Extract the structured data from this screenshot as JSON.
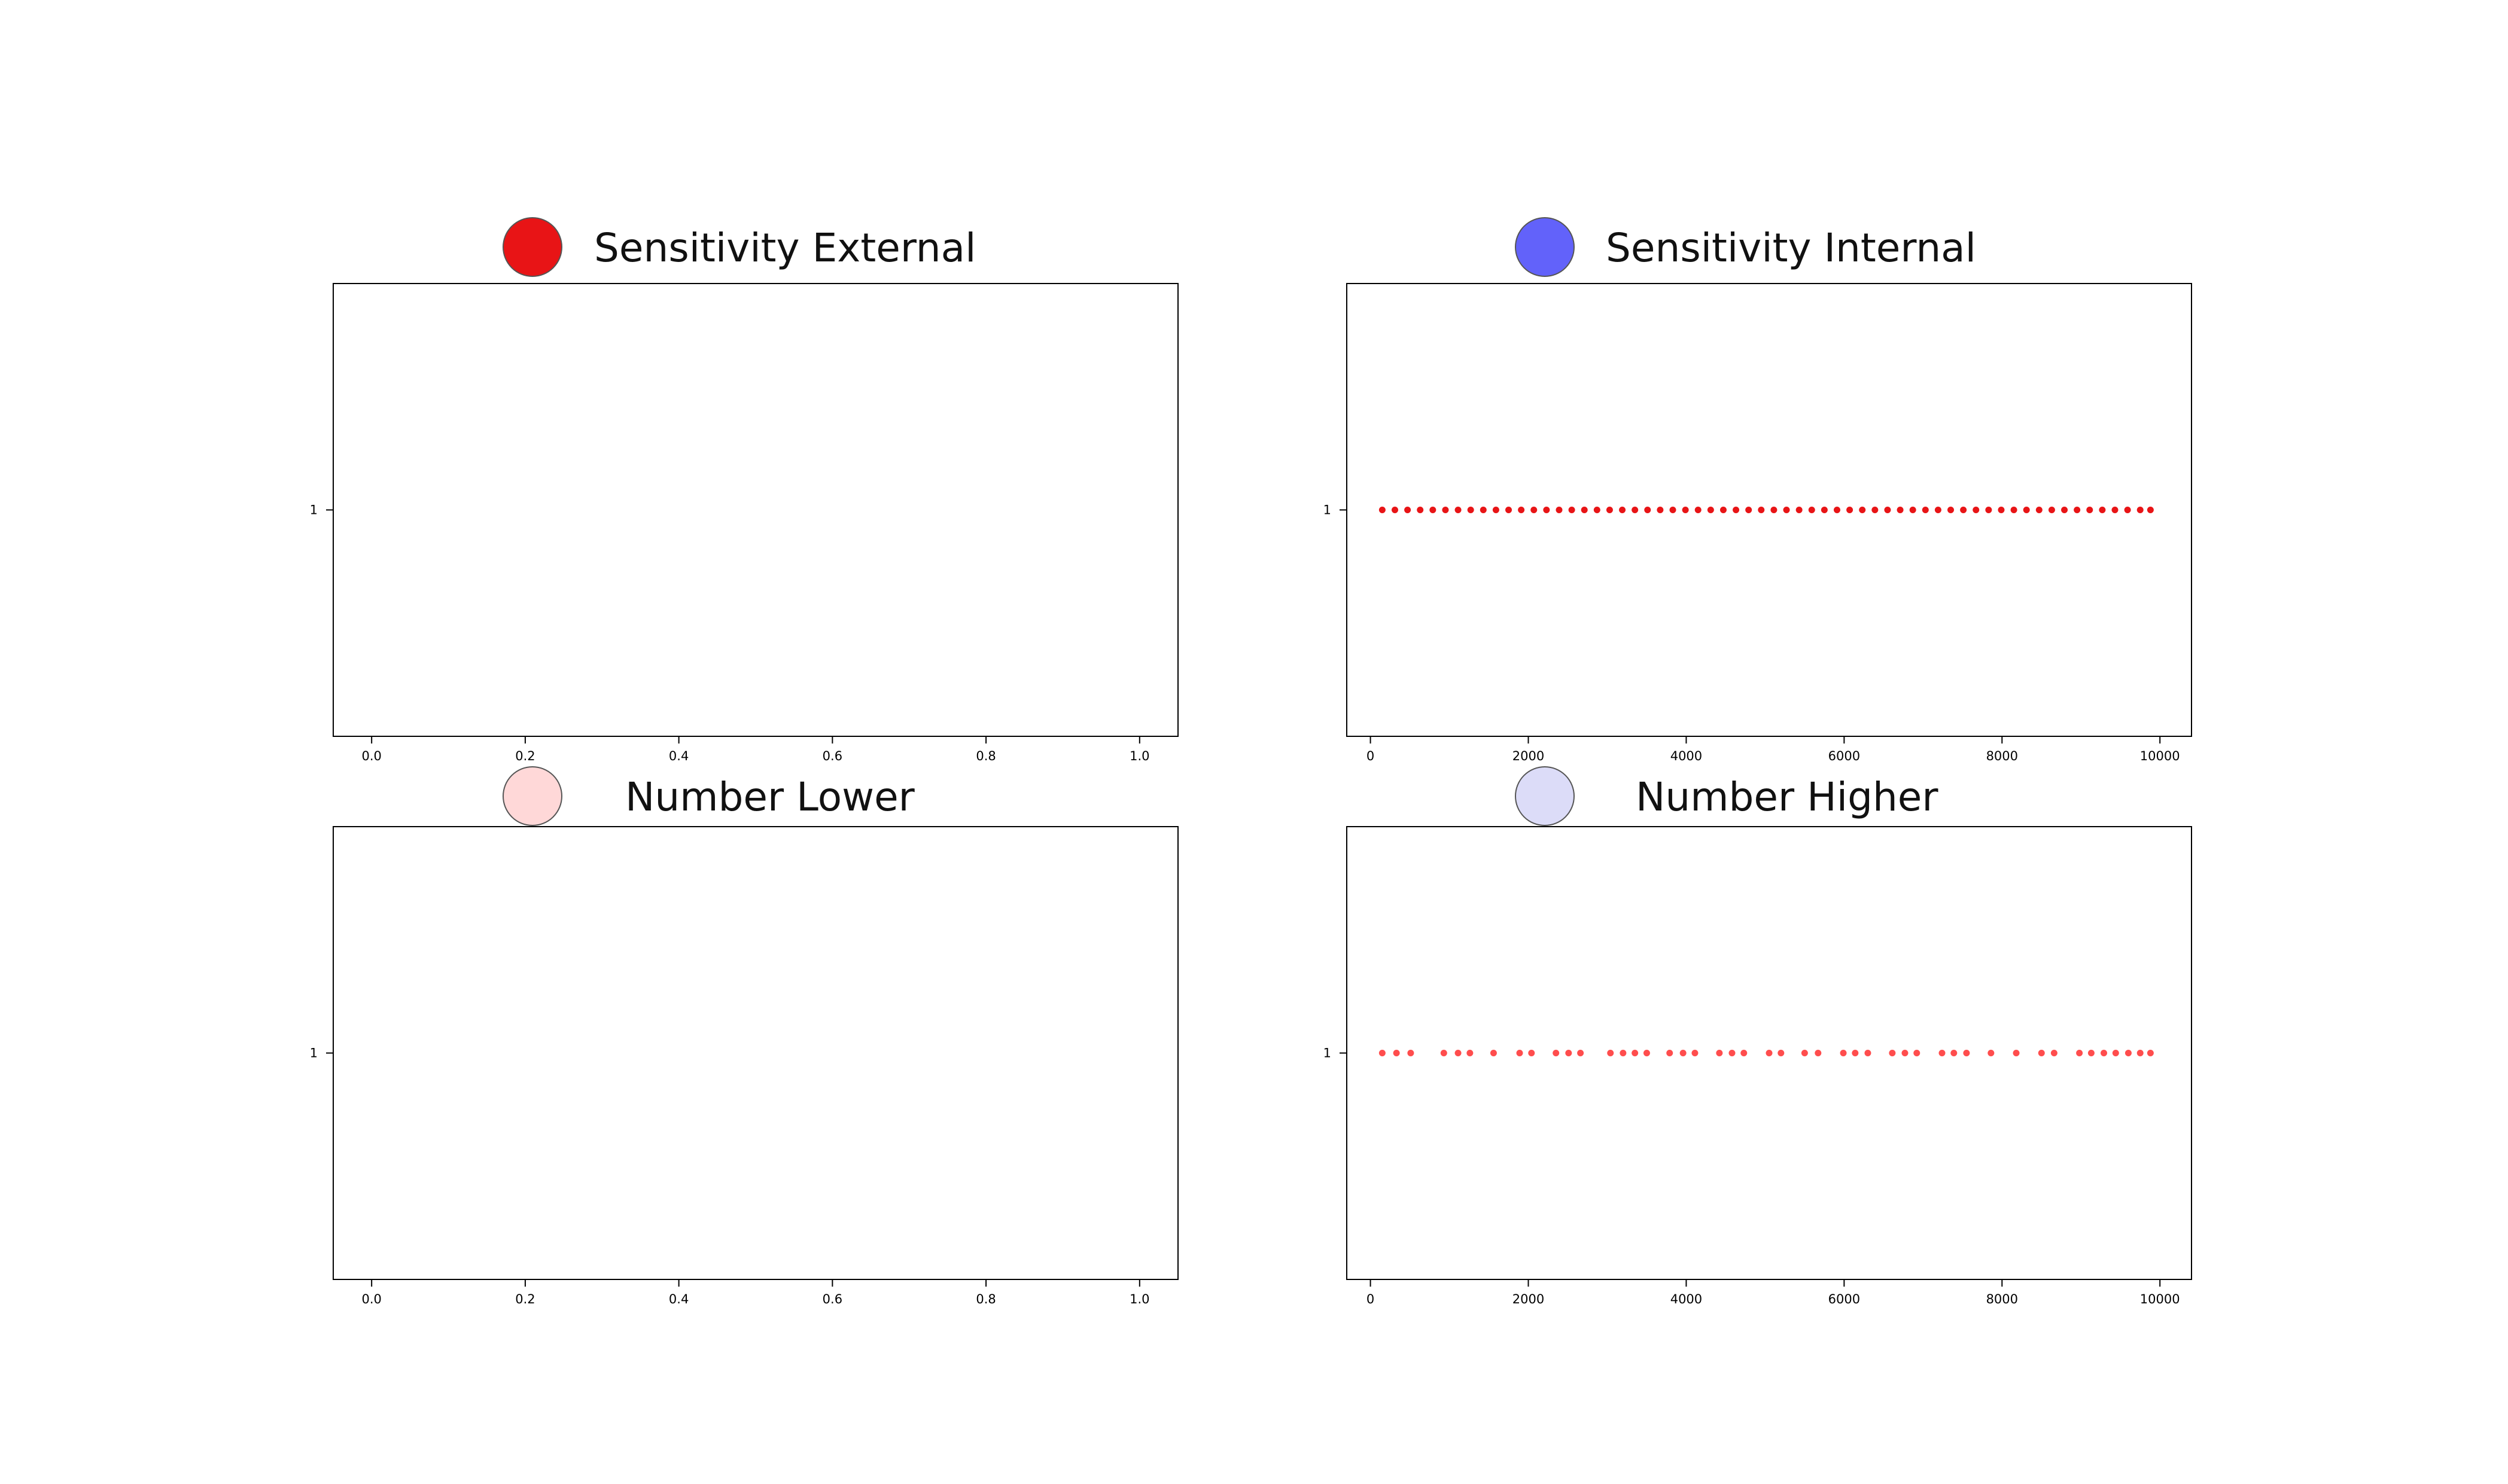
{
  "legend": [
    {
      "label": "Sensitivity External",
      "color": "#e81416"
    },
    {
      "label": "Sensitivity Internal",
      "color": "#6262fa"
    },
    {
      "label": "Number Lower",
      "color": "#ffd8d8"
    },
    {
      "label": "Number Higher",
      "color": "#dcdcf8"
    }
  ],
  "chart_data": [
    {
      "type": "scatter",
      "title": "",
      "xlim": [
        -0.05,
        1.05
      ],
      "x_ticks": [
        "0.0",
        "0.2",
        "0.4",
        "0.6",
        "0.8",
        "1.0"
      ],
      "y_ticks": [
        "1"
      ],
      "ylim": [
        0,
        2
      ],
      "grid": false,
      "series": [
        {
          "x": [],
          "y": [],
          "color": "#e81416"
        }
      ]
    },
    {
      "type": "scatter",
      "title": "",
      "xlim": [
        -300,
        10400
      ],
      "x_ticks": [
        "0",
        "2000",
        "4000",
        "6000",
        "8000",
        "10000"
      ],
      "y_ticks": [
        "1"
      ],
      "ylim": [
        0,
        2
      ],
      "grid": false,
      "series": [
        {
          "color": "#e81416",
          "y_value": 1,
          "x": [
            150,
            310,
            470,
            630,
            790,
            950,
            1110,
            1270,
            1430,
            1590,
            1750,
            1910,
            2070,
            2230,
            2390,
            2550,
            2710,
            2870,
            3030,
            3190,
            3350,
            3510,
            3670,
            3830,
            3990,
            4150,
            4310,
            4470,
            4630,
            4790,
            4950,
            5110,
            5270,
            5430,
            5590,
            5750,
            5910,
            6070,
            6230,
            6390,
            6550,
            6710,
            6870,
            7030,
            7190,
            7350,
            7510,
            7670,
            7830,
            7990,
            8150,
            8310,
            8470,
            8630,
            8790,
            8950,
            9110,
            9270,
            9430,
            9590,
            9750,
            9880
          ]
        }
      ]
    },
    {
      "type": "scatter",
      "title": "",
      "xlim": [
        -0.05,
        1.05
      ],
      "x_ticks": [
        "0.0",
        "0.2",
        "0.4",
        "0.6",
        "0.8",
        "1.0"
      ],
      "y_ticks": [
        "1"
      ],
      "ylim": [
        0,
        2
      ],
      "grid": false,
      "series": [
        {
          "x": [],
          "y": [],
          "color": "#ff4d4d"
        }
      ]
    },
    {
      "type": "scatter",
      "title": "",
      "xlim": [
        -300,
        10400
      ],
      "x_ticks": [
        "0",
        "2000",
        "4000",
        "6000",
        "8000",
        "10000"
      ],
      "y_ticks": [
        "1"
      ],
      "ylim": [
        0,
        2
      ],
      "grid": false,
      "series": [
        {
          "color": "#ff4d4d",
          "y_value": 1,
          "x": [
            150,
            330,
            510,
            930,
            1110,
            1260,
            1560,
            1890,
            2040,
            2350,
            2510,
            2660,
            3040,
            3200,
            3350,
            3500,
            3790,
            3960,
            4110,
            4420,
            4580,
            4730,
            5050,
            5200,
            5500,
            5670,
            5990,
            6140,
            6300,
            6610,
            6770,
            6920,
            7240,
            7390,
            7550,
            7860,
            8180,
            8500,
            8660,
            8980,
            9130,
            9290,
            9440,
            9600,
            9750,
            9880
          ]
        }
      ]
    }
  ]
}
